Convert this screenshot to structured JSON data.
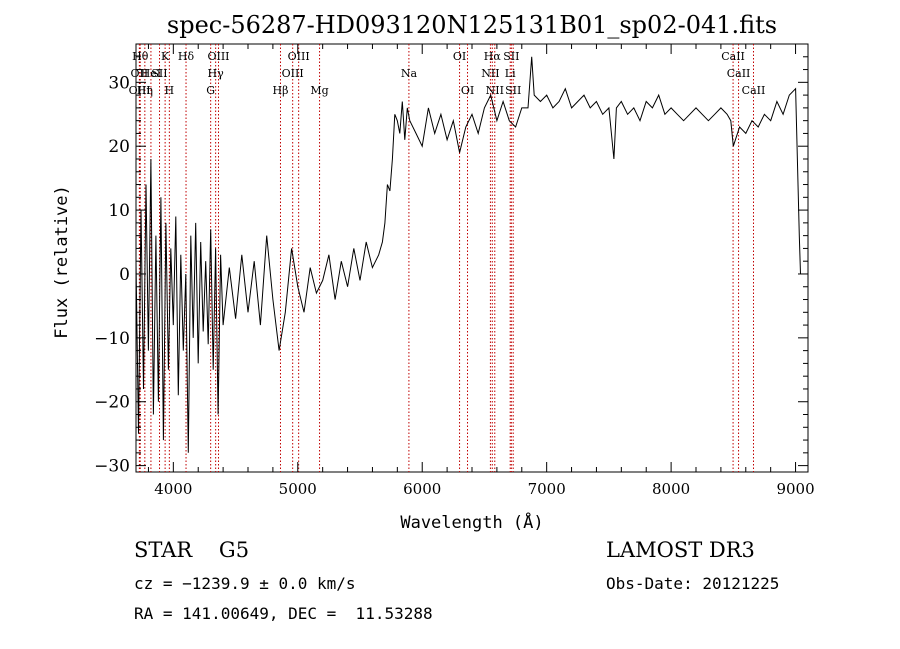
{
  "chart_data": {
    "type": "line",
    "title": "spec-56287-HD093120N125131B01_sp02-041.fits",
    "xlabel": "Wavelength (Å)",
    "ylabel": "Flux (relative)",
    "xlim": [
      3700,
      9100
    ],
    "ylim": [
      -31,
      36
    ],
    "xticks": [
      "4000",
      "5000",
      "6000",
      "7000",
      "8000",
      "9000"
    ],
    "yticks": [
      "−30",
      "−20",
      "−10",
      "0",
      "10",
      "20",
      "30"
    ],
    "grid": false,
    "series": [
      {
        "x": [
          3700,
          3720,
          3740,
          3760,
          3780,
          3800,
          3820,
          3840,
          3860,
          3880,
          3900,
          3920,
          3940,
          3960,
          3980,
          4000,
          4020,
          4040,
          4060,
          4080,
          4100,
          4120,
          4140,
          4160,
          4180,
          4200,
          4220,
          4240,
          4260,
          4280,
          4300,
          4320,
          4340,
          4360,
          4380,
          4400,
          4450,
          4500,
          4550,
          4600,
          4650,
          4700,
          4750,
          4800,
          4850,
          4900,
          4950,
          5000,
          5050,
          5100,
          5150,
          5200,
          5250,
          5300,
          5350,
          5400,
          5450,
          5500,
          5550,
          5600,
          5650,
          5680,
          5700,
          5720,
          5740,
          5760,
          5780,
          5800,
          5820,
          5840,
          5860,
          5880,
          5900,
          5950,
          6000,
          6050,
          6100,
          6150,
          6200,
          6250,
          6300,
          6350,
          6400,
          6450,
          6500,
          6550,
          6600,
          6650,
          6700,
          6750,
          6800,
          6850,
          6880,
          6900,
          6950,
          7000,
          7050,
          7100,
          7150,
          7200,
          7250,
          7300,
          7350,
          7400,
          7450,
          7500,
          7540,
          7560,
          7600,
          7650,
          7700,
          7750,
          7800,
          7850,
          7900,
          7950,
          8000,
          8050,
          8100,
          8150,
          8200,
          8250,
          8300,
          8350,
          8400,
          8450,
          8480,
          8500,
          8550,
          8600,
          8650,
          8700,
          8750,
          8800,
          8850,
          8900,
          8950,
          9000,
          9030,
          9040
        ],
        "y": [
          2,
          -25,
          10,
          -18,
          14,
          -12,
          18,
          -22,
          6,
          -20,
          12,
          -26,
          8,
          -15,
          4,
          -8,
          9,
          -19,
          3,
          -12,
          0,
          -28,
          6,
          -10,
          8,
          -14,
          5,
          -9,
          2,
          -11,
          7,
          -15,
          4,
          -22,
          3,
          -8,
          1,
          -7,
          3,
          -6,
          2,
          -8,
          6,
          -4,
          -12,
          -6,
          4,
          -2,
          -6,
          1,
          -3,
          -1,
          3,
          -4,
          2,
          -2,
          4,
          -1,
          5,
          1,
          3,
          5,
          8,
          14,
          13,
          18,
          25,
          24,
          22,
          27,
          21,
          26,
          24,
          22,
          20,
          26,
          22,
          25,
          21,
          24,
          19,
          23,
          25,
          22,
          26,
          28,
          24,
          27,
          24,
          23,
          26,
          26,
          34,
          28,
          27,
          28,
          26,
          27,
          29,
          26,
          27,
          28,
          26,
          27,
          25,
          26,
          18,
          26,
          27,
          25,
          26,
          24,
          27,
          26,
          28,
          25,
          26,
          25,
          24,
          25,
          26,
          25,
          24,
          25,
          26,
          25,
          24,
          20,
          23,
          22,
          24,
          23,
          25,
          24,
          27,
          25,
          28,
          29,
          6,
          0
        ]
      }
    ],
    "lines": [
      {
        "x": 3734,
        "label": "Hθ",
        "row": 0
      },
      {
        "x": 3727,
        "label": "OII",
        "row": 1
      },
      {
        "x": 3729,
        "label": "OIII",
        "row": 2
      },
      {
        "x": 3771,
        "label": "Hη",
        "row": 2
      },
      {
        "x": 3820,
        "label": "HeI",
        "row": 1
      },
      {
        "x": 3889,
        "label": "SII",
        "row": 1
      },
      {
        "x": 3934,
        "label": "K",
        "row": 0
      },
      {
        "x": 3968,
        "label": "H",
        "row": 2
      },
      {
        "x": 4102,
        "label": "Hδ",
        "row": 0
      },
      {
        "x": 4300,
        "label": "G",
        "row": 2
      },
      {
        "x": 4340,
        "label": "Hγ",
        "row": 1
      },
      {
        "x": 4363,
        "label": "OIII",
        "row": 0
      },
      {
        "x": 4861,
        "label": "Hβ",
        "row": 2
      },
      {
        "x": 4959,
        "label": "OIII",
        "row": 1
      },
      {
        "x": 5007,
        "label": "OIII",
        "row": 0
      },
      {
        "x": 5175,
        "label": "Mg",
        "row": 2
      },
      {
        "x": 5893,
        "label": "Na",
        "row": 1
      },
      {
        "x": 6300,
        "label": "OI",
        "row": 0
      },
      {
        "x": 6364,
        "label": "OI",
        "row": 2
      },
      {
        "x": 6548,
        "label": "NII",
        "row": 1
      },
      {
        "x": 6583,
        "label": "NII",
        "row": 2
      },
      {
        "x": 6563,
        "label": "Hα",
        "row": 0
      },
      {
        "x": 6716,
        "label": "SII",
        "row": 0
      },
      {
        "x": 6707,
        "label": "Li",
        "row": 1
      },
      {
        "x": 6731,
        "label": "SII",
        "row": 2
      },
      {
        "x": 8498,
        "label": "CaII",
        "row": 0
      },
      {
        "x": 8542,
        "label": "CaII",
        "row": 1
      },
      {
        "x": 8662,
        "label": "CaII",
        "row": 2
      }
    ],
    "colors": {
      "spectrum": "#000000",
      "line_marker": "#c00000"
    }
  },
  "info": {
    "class_label": "STAR    G5",
    "survey": "LAMOST DR3",
    "cz": "cz = −1239.9 ± 0.0 km/s",
    "obs_date": "Obs-Date: 20121225",
    "radec": "RA = 141.00649, DEC =  11.53288"
  }
}
